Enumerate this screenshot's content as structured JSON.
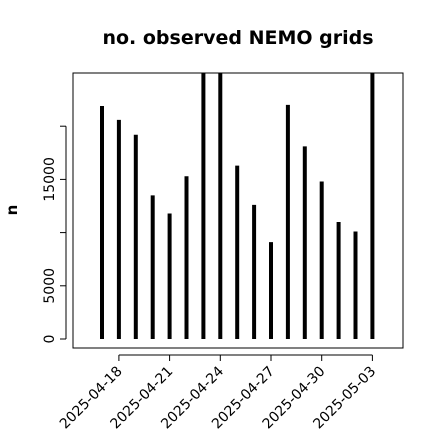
{
  "chart_data": {
    "type": "bar",
    "title": "no. observed NEMO grids",
    "xlabel": "",
    "ylabel": "n",
    "ylim": [
      0,
      25000
    ],
    "y_ticks": [
      0,
      5000,
      15000
    ],
    "y_tick_labels": [
      "0",
      "5000",
      "15000"
    ],
    "y_unlabeled_ticks": [
      10000,
      20000
    ],
    "x_ticks": [
      "2025-04-18",
      "2025-04-21",
      "2025-04-24",
      "2025-04-27",
      "2025-04-30",
      "2025-05-03"
    ],
    "grid": false,
    "series": [
      {
        "x": [
          "2025-04-17",
          "2025-04-18",
          "2025-04-19",
          "2025-04-20",
          "2025-04-21",
          "2025-04-22",
          "2025-04-23",
          "2025-04-24",
          "2025-04-25",
          "2025-04-26",
          "2025-04-27",
          "2025-04-28",
          "2025-04-29",
          "2025-04-30",
          "2025-05-01",
          "2025-05-02",
          "2025-05-03"
        ],
        "values": [
          21900,
          20600,
          19200,
          13500,
          11800,
          15300,
          25000,
          25000,
          16300,
          12600,
          9100,
          22000,
          18100,
          14800,
          11000,
          10100,
          25000
        ]
      }
    ],
    "colors": {
      "bar": "#000000",
      "axis": "#000000",
      "background": "#ffffff"
    }
  }
}
